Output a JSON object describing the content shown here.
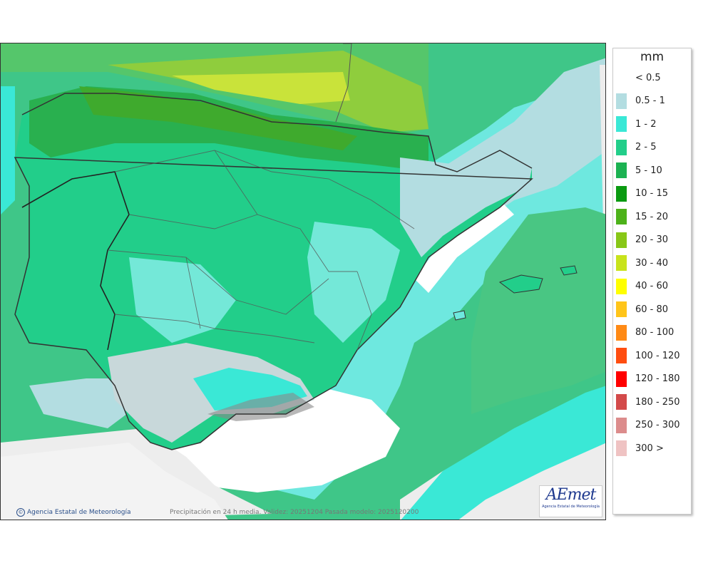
{
  "legend": {
    "title": "mm",
    "items": [
      {
        "label": "< 0.5",
        "color": ""
      },
      {
        "label": "0.5 - 1",
        "color": "#b3dde1"
      },
      {
        "label": "1 - 2",
        "color": "#3ae8d6"
      },
      {
        "label": "2 - 5",
        "color": "#22ce8a"
      },
      {
        "label": "5 - 10",
        "color": "#1cb252"
      },
      {
        "label": "10 - 15",
        "color": "#0a9a11"
      },
      {
        "label": "15 - 20",
        "color": "#4db21a"
      },
      {
        "label": "20 - 30",
        "color": "#88c717"
      },
      {
        "label": "30 - 40",
        "color": "#c8e31b"
      },
      {
        "label": "40 - 60",
        "color": "#ffff00"
      },
      {
        "label": "60 - 80",
        "color": "#ffc51a"
      },
      {
        "label": "80 - 100",
        "color": "#ff8a15"
      },
      {
        "label": "100 - 120",
        "color": "#ff4d10"
      },
      {
        "label": "120 - 180",
        "color": "#ff0000"
      },
      {
        "label": "180 - 250",
        "color": "#d34a4a"
      },
      {
        "label": "250 - 300",
        "color": "#dc8c8c"
      },
      {
        "label": "300 >",
        "color": "#efc3c3"
      }
    ]
  },
  "caption": "Precipitación en 24 h media. Validez: 20251204 Pasada modelo: 2025120200",
  "copyright": "Agencia Estatal de Meteorología",
  "logo": {
    "mark": "AEmet",
    "subtitle": "Agencia Estatal de Meteorología"
  },
  "icons": [
    "copyright-icon",
    "aemet-logo"
  ]
}
